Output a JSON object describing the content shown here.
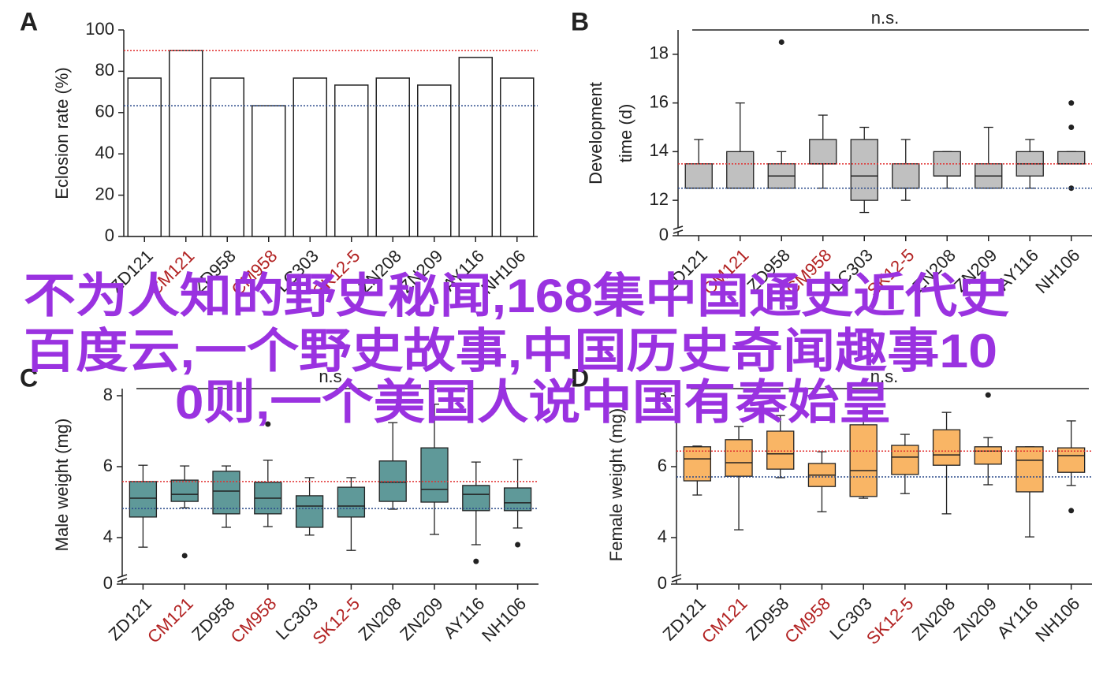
{
  "chart_data": [
    {
      "type": "bar",
      "panel": "A",
      "ylabel": "Eclosion rate (%)",
      "categories": [
        "ZD121",
        "CM121",
        "ZD958",
        "CM958",
        "LC303",
        "SK12-5",
        "ZN208",
        "ZN209",
        "AY116",
        "NH106"
      ],
      "category_colors": [
        "#222222",
        "#b22222",
        "#222222",
        "#b22222",
        "#222222",
        "#b22222",
        "#222222",
        "#222222",
        "#222222",
        "#222222"
      ],
      "values": [
        76.7,
        90,
        76.7,
        63.3,
        76.7,
        73.3,
        76.7,
        73.3,
        86.7,
        76.7
      ],
      "color": "#ffffff",
      "ylim": [
        0,
        100
      ],
      "yticks": [
        0,
        20,
        40,
        60,
        80,
        100
      ],
      "reference_lines": [
        {
          "value": 90,
          "color": "#e03030"
        },
        {
          "value": 63.3,
          "color": "#2a4a8a"
        }
      ]
    },
    {
      "type": "box",
      "panel": "B",
      "ylabel": [
        "Development",
        "time (d)"
      ],
      "annotation": "n.s.",
      "categories": [
        "ZD121",
        "CM121",
        "ZD958",
        "CM958",
        "LC303",
        "SK12-5",
        "ZN208",
        "ZN209",
        "AY116",
        "NH106"
      ],
      "category_colors": [
        "#222222",
        "#b22222",
        "#222222",
        "#b22222",
        "#222222",
        "#b22222",
        "#222222",
        "#222222",
        "#222222",
        "#222222"
      ],
      "color": "#c0c0c0",
      "boxes": [
        {
          "min": 12.5,
          "q1": 12.5,
          "median": 12.5,
          "q3": 13.5,
          "max": 14.5,
          "outliers": []
        },
        {
          "min": 12.5,
          "q1": 12.5,
          "median": 12.5,
          "q3": 14,
          "max": 16,
          "outliers": []
        },
        {
          "min": 12.5,
          "q1": 12.5,
          "median": 13,
          "q3": 13.5,
          "max": 14,
          "outliers": [
            18.5
          ]
        },
        {
          "min": 12.5,
          "q1": 13.5,
          "median": 13.5,
          "q3": 14.5,
          "max": 15.5,
          "outliers": []
        },
        {
          "min": 11.5,
          "q1": 12,
          "median": 13,
          "q3": 14.5,
          "max": 15,
          "outliers": []
        },
        {
          "min": 12,
          "q1": 12.5,
          "median": 12.5,
          "q3": 13.5,
          "max": 14.5,
          "outliers": []
        },
        {
          "min": 12.5,
          "q1": 13,
          "median": 13,
          "q3": 14,
          "max": 14,
          "outliers": []
        },
        {
          "min": 12.5,
          "q1": 12.5,
          "median": 13,
          "q3": 13.5,
          "max": 15,
          "outliers": []
        },
        {
          "min": 12.5,
          "q1": 13,
          "median": 13.5,
          "q3": 14,
          "max": 14.5,
          "outliers": []
        },
        {
          "min": 13.5,
          "q1": 13.5,
          "median": 13.5,
          "q3": 14,
          "max": 14,
          "outliers": [
            16,
            15,
            12.5
          ]
        }
      ],
      "ylim": [
        0,
        19
      ],
      "ybreak": [
        0.5,
        11
      ],
      "yticks": [
        0,
        12,
        14,
        16,
        18
      ],
      "reference_lines": [
        {
          "value": 13.5,
          "color": "#e03030"
        },
        {
          "value": 12.5,
          "color": "#2a4a8a"
        }
      ]
    },
    {
      "type": "box",
      "panel": "C",
      "ylabel": "Male weight (mg)",
      "annotation": "n.s",
      "categories": [
        "ZD121",
        "CM121",
        "ZD958",
        "CM958",
        "LC303",
        "SK12-5",
        "ZN208",
        "ZN209",
        "AY116",
        "NH106"
      ],
      "category_colors": [
        "#222222",
        "#b22222",
        "#222222",
        "#b22222",
        "#222222",
        "#b22222",
        "#222222",
        "#222222",
        "#222222",
        "#222222"
      ],
      "color": "#5f9999",
      "boxes": [
        {
          "min": 3.73,
          "q1": 4.58,
          "median": 5.11,
          "q3": 5.58,
          "max": 6.04,
          "outliers": []
        },
        {
          "min": 4.84,
          "q1": 5.02,
          "median": 5.22,
          "q3": 5.62,
          "max": 6.02,
          "outliers": [
            3.49
          ]
        },
        {
          "min": 4.29,
          "q1": 4.67,
          "median": 5.31,
          "q3": 5.87,
          "max": 6.02,
          "outliers": []
        },
        {
          "min": 4.31,
          "q1": 4.67,
          "median": 5.11,
          "q3": 5.56,
          "max": 6.18,
          "outliers": [
            7.2
          ]
        },
        {
          "min": 4.07,
          "q1": 4.29,
          "median": 4.89,
          "q3": 5.18,
          "max": 5.69,
          "outliers": []
        },
        {
          "min": 3.64,
          "q1": 4.58,
          "median": 4.89,
          "q3": 5.42,
          "max": 5.69,
          "outliers": []
        },
        {
          "min": 4.8,
          "q1": 5.02,
          "median": 5.56,
          "q3": 6.16,
          "max": 7.24,
          "outliers": []
        },
        {
          "min": 4.09,
          "q1": 5.0,
          "median": 5.36,
          "q3": 6.53,
          "max": 7.76,
          "outliers": []
        },
        {
          "min": 3.8,
          "q1": 4.76,
          "median": 5.22,
          "q3": 5.47,
          "max": 6.13,
          "outliers": [
            3.33
          ]
        },
        {
          "min": 4.27,
          "q1": 4.76,
          "median": 4.98,
          "q3": 5.4,
          "max": 6.2,
          "outliers": [
            3.8
          ]
        }
      ],
      "ylim": [
        0,
        8.2
      ],
      "ybreak": [
        0.5,
        3
      ],
      "yticks": [
        0,
        4,
        6,
        8
      ],
      "reference_lines": [
        {
          "value": 5.58,
          "color": "#e03030"
        },
        {
          "value": 4.82,
          "color": "#2a4a8a"
        }
      ]
    },
    {
      "type": "box",
      "panel": "D",
      "ylabel": "Female weight (mg)",
      "annotation": "n.s.",
      "categories": [
        "ZD121",
        "CM121",
        "ZD958",
        "CM958",
        "LC303",
        "SK12-5",
        "ZN208",
        "ZN209",
        "AY116",
        "NH106"
      ],
      "category_colors": [
        "#222222",
        "#b22222",
        "#222222",
        "#b22222",
        "#222222",
        "#b22222",
        "#222222",
        "#222222",
        "#222222",
        "#222222"
      ],
      "color": "#f9b565",
      "boxes": [
        {
          "min": 5.2,
          "q1": 5.6,
          "median": 6.22,
          "q3": 6.56,
          "max": 6.58,
          "outliers": []
        },
        {
          "min": 4.22,
          "q1": 5.73,
          "median": 6.11,
          "q3": 6.76,
          "max": 7.13,
          "outliers": []
        },
        {
          "min": 5.69,
          "q1": 5.93,
          "median": 6.36,
          "q3": 7.0,
          "max": 7.44,
          "outliers": []
        },
        {
          "min": 4.73,
          "q1": 5.44,
          "median": 5.76,
          "q3": 6.09,
          "max": 6.42,
          "outliers": []
        },
        {
          "min": 5.11,
          "q1": 5.16,
          "median": 5.89,
          "q3": 7.18,
          "max": 7.49,
          "outliers": []
        },
        {
          "min": 5.24,
          "q1": 5.78,
          "median": 6.27,
          "q3": 6.6,
          "max": 6.91,
          "outliers": []
        },
        {
          "min": 4.67,
          "q1": 6.04,
          "median": 6.33,
          "q3": 7.04,
          "max": 7.53,
          "outliers": []
        },
        {
          "min": 5.49,
          "q1": 6.07,
          "median": 6.44,
          "q3": 6.56,
          "max": 6.82,
          "outliers": [
            8.02
          ]
        },
        {
          "min": 4.02,
          "q1": 5.29,
          "median": 6.18,
          "q3": 6.56,
          "max": 6.56,
          "outliers": []
        },
        {
          "min": 5.47,
          "q1": 5.84,
          "median": 6.31,
          "q3": 6.53,
          "max": 7.29,
          "outliers": [
            4.76
          ]
        }
      ],
      "ylim": [
        0,
        8.2
      ],
      "ybreak": [
        0.5,
        3
      ],
      "yticks": [
        0,
        4,
        6,
        8
      ],
      "reference_lines": [
        {
          "value": 6.44,
          "color": "#e03030"
        },
        {
          "value": 5.71,
          "color": "#2a4a8a"
        }
      ]
    }
  ],
  "overlay_text": [
    "不为人知的野史秘闻,168集中国通史近代史",
    "百度云,一个野史故事,中国历史奇闻趣事10",
    "0则,一个美国人说中国有秦始皇"
  ],
  "overlay_color": "#9a32e0"
}
